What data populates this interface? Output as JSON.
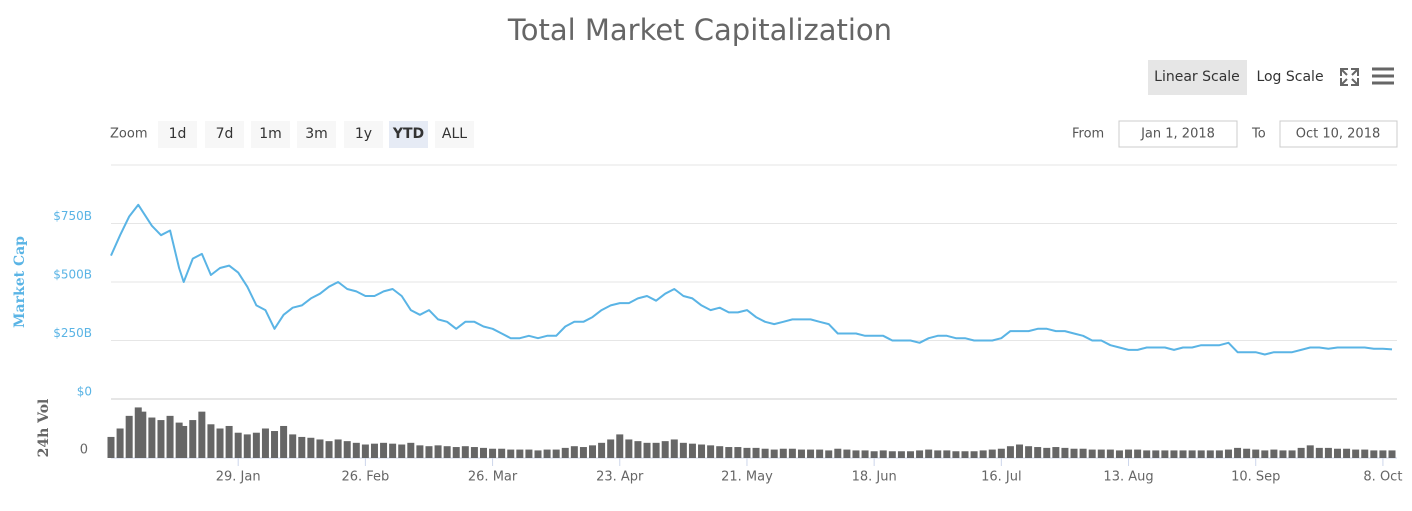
{
  "chart_data": {
    "type": "line",
    "title": "Total Market Capitalization",
    "ylabel": "Market Cap",
    "y2label": "24h Vol",
    "x": [
      "1. Jan",
      "3. Jan",
      "5. Jan",
      "7. Jan",
      "8. Jan",
      "10. Jan",
      "12. Jan",
      "14. Jan",
      "16. Jan",
      "17. Jan",
      "19. Jan",
      "21. Jan",
      "23. Jan",
      "25. Jan",
      "27. Jan",
      "29. Jan",
      "31. Jan",
      "2. Feb",
      "4. Feb",
      "6. Feb",
      "8. Feb",
      "10. Feb",
      "12. Feb",
      "14. Feb",
      "16. Feb",
      "18. Feb",
      "20. Feb",
      "22. Feb",
      "24. Feb",
      "26. Feb",
      "28. Feb",
      "2. Mar",
      "4. Mar",
      "6. Mar",
      "8. Mar",
      "10. Mar",
      "12. Mar",
      "14. Mar",
      "16. Mar",
      "18. Mar",
      "20. Mar",
      "22. Mar",
      "24. Mar",
      "26. Mar",
      "28. Mar",
      "30. Mar",
      "1. Apr",
      "3. Apr",
      "5. Apr",
      "7. Apr",
      "9. Apr",
      "11. Apr",
      "13. Apr",
      "15. Apr",
      "17. Apr",
      "19. Apr",
      "21. Apr",
      "23. Apr",
      "25. Apr",
      "27. Apr",
      "29. Apr",
      "1. May",
      "3. May",
      "5. May",
      "7. May",
      "9. May",
      "11. May",
      "13. May",
      "15. May",
      "17. May",
      "19. May",
      "21. May",
      "23. May",
      "25. May",
      "27. May",
      "29. May",
      "31. May",
      "2. Jun",
      "4. Jun",
      "6. Jun",
      "8. Jun",
      "10. Jun",
      "12. Jun",
      "14. Jun",
      "16. Jun",
      "18. Jun",
      "20. Jun",
      "22. Jun",
      "24. Jun",
      "26. Jun",
      "28. Jun",
      "30. Jun",
      "2. Jul",
      "4. Jul",
      "6. Jul",
      "8. Jul",
      "10. Jul",
      "12. Jul",
      "14. Jul",
      "16. Jul",
      "18. Jul",
      "20. Jul",
      "22. Jul",
      "24. Jul",
      "26. Jul",
      "28. Jul",
      "30. Jul",
      "1. Aug",
      "3. Aug",
      "5. Aug",
      "7. Aug",
      "9. Aug",
      "11. Aug",
      "13. Aug",
      "15. Aug",
      "17. Aug",
      "19. Aug",
      "21. Aug",
      "23. Aug",
      "25. Aug",
      "27. Aug",
      "29. Aug",
      "31. Aug",
      "2. Sep",
      "4. Sep",
      "6. Sep",
      "8. Sep",
      "10. Sep",
      "12. Sep",
      "14. Sep",
      "16. Sep",
      "18. Sep",
      "20. Sep",
      "22. Sep",
      "24. Sep",
      "26. Sep",
      "28. Sep",
      "30. Sep",
      "2. Oct",
      "4. Oct",
      "6. Oct",
      "8. Oct",
      "10. Oct"
    ],
    "series": [
      {
        "name": "Market Cap",
        "color": "#5ab4e5",
        "values": [
          613000000000.0,
          700000000000.0,
          780000000000.0,
          830000000000.0,
          800000000000.0,
          740000000000.0,
          700000000000.0,
          720000000000.0,
          560000000000.0,
          500000000000.0,
          600000000000.0,
          620000000000.0,
          530000000000.0,
          560000000000.0,
          570000000000.0,
          540000000000.0,
          480000000000.0,
          400000000000.0,
          380000000000.0,
          300000000000.0,
          360000000000.0,
          390000000000.0,
          400000000000.0,
          430000000000.0,
          450000000000.0,
          480000000000.0,
          500000000000.0,
          470000000000.0,
          460000000000.0,
          440000000000.0,
          440000000000.0,
          460000000000.0,
          470000000000.0,
          440000000000.0,
          380000000000.0,
          360000000000.0,
          380000000000.0,
          340000000000.0,
          330000000000.0,
          300000000000.0,
          330000000000.0,
          330000000000.0,
          310000000000.0,
          300000000000.0,
          280000000000.0,
          260000000000.0,
          260000000000.0,
          270000000000.0,
          260000000000.0,
          270000000000.0,
          270000000000.0,
          310000000000.0,
          330000000000.0,
          330000000000.0,
          350000000000.0,
          380000000000.0,
          400000000000.0,
          410000000000.0,
          410000000000.0,
          430000000000.0,
          440000000000.0,
          420000000000.0,
          450000000000.0,
          470000000000.0,
          440000000000.0,
          430000000000.0,
          400000000000.0,
          380000000000.0,
          390000000000.0,
          370000000000.0,
          370000000000.0,
          380000000000.0,
          350000000000.0,
          330000000000.0,
          320000000000.0,
          330000000000.0,
          340000000000.0,
          340000000000.0,
          340000000000.0,
          330000000000.0,
          320000000000.0,
          280000000000.0,
          280000000000.0,
          280000000000.0,
          270000000000.0,
          270000000000.0,
          270000000000.0,
          250000000000.0,
          250000000000.0,
          250000000000.0,
          240000000000.0,
          260000000000.0,
          270000000000.0,
          270000000000.0,
          260000000000.0,
          260000000000.0,
          250000000000.0,
          250000000000.0,
          250000000000.0,
          260000000000.0,
          290000000000.0,
          290000000000.0,
          290000000000.0,
          300000000000.0,
          300000000000.0,
          290000000000.0,
          290000000000.0,
          280000000000.0,
          270000000000.0,
          250000000000.0,
          250000000000.0,
          230000000000.0,
          220000000000.0,
          210000000000.0,
          210000000000.0,
          220000000000.0,
          220000000000.0,
          220000000000.0,
          210000000000.0,
          220000000000.0,
          220000000000.0,
          230000000000.0,
          230000000000.0,
          230000000000.0,
          240000000000.0,
          200000000000.0,
          200000000000.0,
          200000000000.0,
          190000000000.0,
          200000000000.0,
          200000000000.0,
          200000000000.0,
          210000000000.0,
          220000000000.0,
          220000000000.0,
          215000000000.0,
          220000000000.0,
          220000000000.0,
          220000000000.0,
          220000000000.0,
          215000000000.0,
          215000000000.0,
          212000000000.0
        ]
      },
      {
        "name": "24h Vol",
        "type": "bar",
        "axis": "y2",
        "color": "#666666",
        "values": [
          25000000000.0,
          35000000000.0,
          50000000000.0,
          60000000000.0,
          55000000000.0,
          48000000000.0,
          45000000000.0,
          50000000000.0,
          42000000000.0,
          38000000000.0,
          45000000000.0,
          55000000000.0,
          40000000000.0,
          35000000000.0,
          38000000000.0,
          30000000000.0,
          28000000000.0,
          30000000000.0,
          35000000000.0,
          32000000000.0,
          38000000000.0,
          28000000000.0,
          25000000000.0,
          24000000000.0,
          22000000000.0,
          20000000000.0,
          22000000000.0,
          20000000000.0,
          18000000000.0,
          16000000000.0,
          17000000000.0,
          18000000000.0,
          17000000000.0,
          16000000000.0,
          18000000000.0,
          15000000000.0,
          14000000000.0,
          15000000000.0,
          14000000000.0,
          13000000000.0,
          14000000000.0,
          13000000000.0,
          12000000000.0,
          11000000000.0,
          11000000000.0,
          10000000000.0,
          10000000000.0,
          10000000000.0,
          9000000000.0,
          10000000000.0,
          10000000000.0,
          12000000000.0,
          14000000000.0,
          13000000000.0,
          15000000000.0,
          18000000000.0,
          22000000000.0,
          28000000000.0,
          22000000000.0,
          20000000000.0,
          18000000000.0,
          18000000000.0,
          20000000000.0,
          22000000000.0,
          18000000000.0,
          17000000000.0,
          16000000000.0,
          15000000000.0,
          14000000000.0,
          13000000000.0,
          13000000000.0,
          12000000000.0,
          12000000000.0,
          11000000000.0,
          10000000000.0,
          11000000000.0,
          11000000000.0,
          10000000000.0,
          10000000000.0,
          10000000000.0,
          9000000000.0,
          11000000000.0,
          10000000000.0,
          9000000000.0,
          9000000000.0,
          8000000000.0,
          9000000000.0,
          8000000000.0,
          8000000000.0,
          8000000000.0,
          9000000000.0,
          10000000000.0,
          9000000000.0,
          9000000000.0,
          8000000000.0,
          8000000000.0,
          8000000000.0,
          9000000000.0,
          10000000000.0,
          11000000000.0,
          14000000000.0,
          16000000000.0,
          14000000000.0,
          13000000000.0,
          12000000000.0,
          13000000000.0,
          12000000000.0,
          11000000000.0,
          11000000000.0,
          10000000000.0,
          10000000000.0,
          10000000000.0,
          9000000000.0,
          10000000000.0,
          10000000000.0,
          9000000000.0,
          9000000000.0,
          9000000000.0,
          9000000000.0,
          9000000000.0,
          9000000000.0,
          9000000000.0,
          9000000000.0,
          9000000000.0,
          10000000000.0,
          12000000000.0,
          11000000000.0,
          10000000000.0,
          9000000000.0,
          10000000000.0,
          9000000000.0,
          9000000000.0,
          12000000000.0,
          15000000000.0,
          12000000000.0,
          12000000000.0,
          11000000000.0,
          11000000000.0,
          10000000000.0,
          10000000000.0,
          9000000000.0,
          9000000000.0,
          9000000000.0
        ]
      }
    ],
    "xlim": [
      "1. Jan",
      "10. Oct"
    ],
    "xticks": [
      "29. Jan",
      "26. Feb",
      "26. Mar",
      "23. Apr",
      "21. May",
      "18. Jun",
      "16. Jul",
      "13. Aug",
      "10. Sep",
      "8. Oct"
    ],
    "ylim": [
      0,
      1000000000000.0
    ],
    "yticks": [
      {
        "value": 0,
        "label": "$0"
      },
      {
        "value": 250000000000.0,
        "label": "$250B"
      },
      {
        "value": 500000000000.0,
        "label": "$500B"
      },
      {
        "value": 750000000000.0,
        "label": "$750B"
      }
    ],
    "y2lim": [
      0,
      70000000000.0
    ],
    "y2ticks": [
      0
    ],
    "grid": true
  },
  "ui": {
    "scale_buttons": [
      "Linear Scale",
      "Log Scale"
    ],
    "zoom_label": "Zoom",
    "zoom_buttons": [
      "1d",
      "7d",
      "1m",
      "3m",
      "1y",
      "YTD",
      "ALL"
    ],
    "from_label": "From",
    "from": "Jan 1, 2018",
    "to_label": "To",
    "to": "Oct 10, 2018"
  }
}
